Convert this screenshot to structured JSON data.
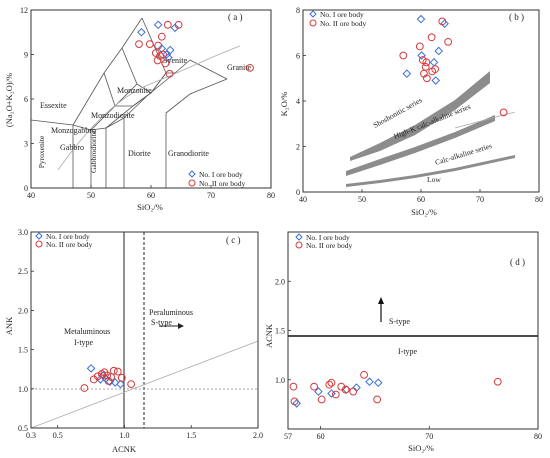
{
  "colors": {
    "series_I": "#3a6fd8",
    "series_II": "#d63b3b",
    "axis": "#333333",
    "band": "#8c8c8c"
  },
  "chart_data": [
    {
      "panel": "(a)",
      "type": "scatter",
      "xlabel": "SiO2/%",
      "ylabel": "(Na2O+K2O)/%",
      "xlim": [
        40,
        80
      ],
      "ylim": [
        0,
        12
      ],
      "xticks": [
        40,
        50,
        60,
        70,
        80
      ],
      "yticks": [
        0,
        3,
        6,
        9,
        12
      ],
      "legend_position": "bottom-right",
      "field_labels": [
        "Syenite",
        "Monzonite",
        "Granite",
        "Essexite",
        "Monzodiorite",
        "Monzogabbro",
        "Gabbro",
        "Gabbrodiorite",
        "Diorite",
        "Granodiorite",
        "Pyroxenite"
      ],
      "series": [
        {
          "name": "No. I ore body",
          "marker": "diamond",
          "points": [
            [
              61.2,
              11.0
            ],
            [
              64.0,
              10.8
            ],
            [
              58.4,
              10.5
            ],
            [
              63.2,
              9.3
            ],
            [
              61.8,
              9.4
            ],
            [
              62.9,
              8.8
            ],
            [
              62.6,
              9.0
            ]
          ]
        },
        {
          "name": "No. II ore body",
          "marker": "circle",
          "points": [
            [
              62.8,
              11.0
            ],
            [
              64.6,
              11.0
            ],
            [
              58.0,
              9.7
            ],
            [
              59.8,
              9.7
            ],
            [
              61.2,
              9.6
            ],
            [
              61.8,
              10.2
            ],
            [
              60.8,
              9.1
            ],
            [
              62.0,
              9.0
            ],
            [
              61.1,
              8.6
            ],
            [
              62.4,
              8.4
            ],
            [
              61.5,
              8.9
            ],
            [
              63.1,
              7.7
            ],
            [
              76.5,
              8.1
            ]
          ]
        }
      ]
    },
    {
      "panel": "(b)",
      "type": "scatter",
      "xlabel": "SiO2/%",
      "ylabel": "K2O/%",
      "xlim": [
        40,
        80
      ],
      "ylim": [
        0,
        8
      ],
      "xticks": [
        40,
        50,
        60,
        70,
        80
      ],
      "yticks": [
        0,
        2,
        4,
        6,
        8
      ],
      "legend_position": "top-left",
      "series_labels": [
        "Shoshonitic series",
        "High-K calc-alkaline series",
        "Calc-alkaline series",
        "Low"
      ],
      "series": [
        {
          "name": "No. I ore body",
          "marker": "diamond",
          "points": [
            [
              60.0,
              7.6
            ],
            [
              64.0,
              7.4
            ],
            [
              60.1,
              6.0
            ],
            [
              63.0,
              6.2
            ],
            [
              62.2,
              5.7
            ],
            [
              57.6,
              5.2
            ],
            [
              62.5,
              4.9
            ]
          ]
        },
        {
          "name": "No. II ore body",
          "marker": "circle",
          "points": [
            [
              63.6,
              7.5
            ],
            [
              61.8,
              6.8
            ],
            [
              59.8,
              6.4
            ],
            [
              64.6,
              6.6
            ],
            [
              57.0,
              6.0
            ],
            [
              60.3,
              5.8
            ],
            [
              60.9,
              5.7
            ],
            [
              60.8,
              5.5
            ],
            [
              61.9,
              5.3
            ],
            [
              61.0,
              5.0
            ],
            [
              60.5,
              5.2
            ],
            [
              62.4,
              5.4
            ],
            [
              74.0,
              3.5
            ]
          ]
        }
      ]
    },
    {
      "panel": "(c)",
      "type": "scatter",
      "xlabel": "ACNK",
      "ylabel": "ANK",
      "xlim": [
        0.3,
        2.0
      ],
      "ylim": [
        0.5,
        3.0
      ],
      "xticks": [
        0.3,
        0.5,
        1.0,
        1.5,
        2.0
      ],
      "yticks": [
        0.5,
        1.0,
        1.5,
        2.0,
        2.5,
        3.0
      ],
      "legend_position": "top-left",
      "field_labels": [
        "Metaluminous",
        "I-type",
        "Peraluminous",
        "S-type"
      ],
      "series": [
        {
          "name": "No. I ore body",
          "marker": "diamond",
          "points": [
            [
              0.75,
              1.26
            ],
            [
              0.84,
              1.17
            ],
            [
              0.86,
              1.13
            ],
            [
              0.89,
              1.09
            ],
            [
              0.93,
              1.08
            ],
            [
              0.97,
              1.06
            ],
            [
              0.82,
              1.12
            ]
          ]
        },
        {
          "name": "No. II ore body",
          "marker": "circle",
          "points": [
            [
              0.7,
              1.01
            ],
            [
              0.77,
              1.12
            ],
            [
              0.8,
              1.16
            ],
            [
              0.83,
              1.19
            ],
            [
              0.87,
              1.17
            ],
            [
              0.9,
              1.15
            ],
            [
              0.92,
              1.23
            ],
            [
              0.95,
              1.22
            ],
            [
              0.98,
              1.14
            ],
            [
              1.05,
              1.06
            ],
            [
              0.88,
              1.1
            ],
            [
              0.85,
              1.21
            ]
          ]
        }
      ]
    },
    {
      "panel": "(d)",
      "type": "scatter",
      "xlabel": "SiO2/%",
      "ylabel": "ACNK",
      "xlim": [
        57,
        80
      ],
      "ylim": [
        0.5,
        2.5
      ],
      "xticks": [
        57,
        60,
        70,
        80
      ],
      "yticks": [
        1.0,
        1.5,
        2.0
      ],
      "reference_line_y": 1.1,
      "legend_position": "top-left",
      "field_labels": [
        "S-type",
        "I-type"
      ],
      "series": [
        {
          "name": "No. I ore body",
          "marker": "diamond",
          "points": [
            [
              57.8,
              0.76
            ],
            [
              59.8,
              0.88
            ],
            [
              61.0,
              0.86
            ],
            [
              62.4,
              0.9
            ],
            [
              63.3,
              0.92
            ],
            [
              64.5,
              0.98
            ],
            [
              65.3,
              0.97
            ]
          ]
        },
        {
          "name": "No. II ore body",
          "marker": "circle",
          "points": [
            [
              57.5,
              0.93
            ],
            [
              57.6,
              0.78
            ],
            [
              59.4,
              0.93
            ],
            [
              60.1,
              0.8
            ],
            [
              60.8,
              0.95
            ],
            [
              61.0,
              0.97
            ],
            [
              61.4,
              0.85
            ],
            [
              61.9,
              0.93
            ],
            [
              62.3,
              0.9
            ],
            [
              63.0,
              0.88
            ],
            [
              64.0,
              1.05
            ],
            [
              65.2,
              0.8
            ],
            [
              76.3,
              0.98
            ]
          ]
        }
      ]
    }
  ],
  "panels": {
    "a": {
      "tag": "( a )",
      "ylabel": "(Na₂O+K₂O)/%",
      "xlabel": "SiO₂/%",
      "xticks": [
        "40",
        "50",
        "60",
        "70",
        "80"
      ],
      "yticks": [
        "0",
        "3",
        "6",
        "9",
        "12"
      ],
      "fields": {
        "syenite": "Syenite",
        "monzonite": "Monzonite",
        "granite": "Granite",
        "essexite": "Essexite",
        "monzodiorite": "Monzodiorite",
        "monzogabbro": "Monzogabbro",
        "gabbro": "Gabbro",
        "gabbrodiorite": "Gabbrodiorite",
        "diorite": "Diorite",
        "granodiorite": "Granodiorite",
        "pyroxenite": "Pyroxenite"
      },
      "legend": [
        "No. I ore body",
        "No. II ore body"
      ]
    },
    "b": {
      "tag": "( b )",
      "ylabel": "K₂O/%",
      "xlabel": "SiO₂/%",
      "xticks": [
        "40",
        "50",
        "60",
        "70",
        "80"
      ],
      "yticks": [
        "0",
        "2",
        "4",
        "6",
        "8"
      ],
      "series_labels": {
        "shoshonitic": "Shoshonitic series",
        "highk": "High-K calc-alkaline series",
        "calc": "Calc-alkaline series",
        "low": "Low"
      },
      "legend": [
        "No. I ore body",
        "No. II ore body"
      ]
    },
    "c": {
      "tag": "( c )",
      "ylabel": "ANK",
      "xlabel": "ACNK",
      "xticks": [
        "0.3",
        "0.5",
        "1.0",
        "1.5",
        "2.0"
      ],
      "yticks": [
        "0.5",
        "1.0",
        "1.5",
        "2.0",
        "2.5",
        "3.0"
      ],
      "fields": {
        "metaluminous": "Metaluminous",
        "itype": "I-type",
        "peraluminous": "Peraluminous",
        "stype": "S-type"
      },
      "legend": [
        "No. I ore body",
        "No. II ore body"
      ]
    },
    "d": {
      "tag": "( d )",
      "ylabel": "ACNK",
      "xlabel": "SiO₂/%",
      "xticks": [
        "57",
        "60",
        "70",
        "80"
      ],
      "yticks": [
        "1.0",
        "1.5",
        "2.0"
      ],
      "fields": {
        "stype": "S-type",
        "itype": "I-type"
      },
      "legend": [
        "No. I ore body",
        "No. II ore body"
      ]
    }
  }
}
